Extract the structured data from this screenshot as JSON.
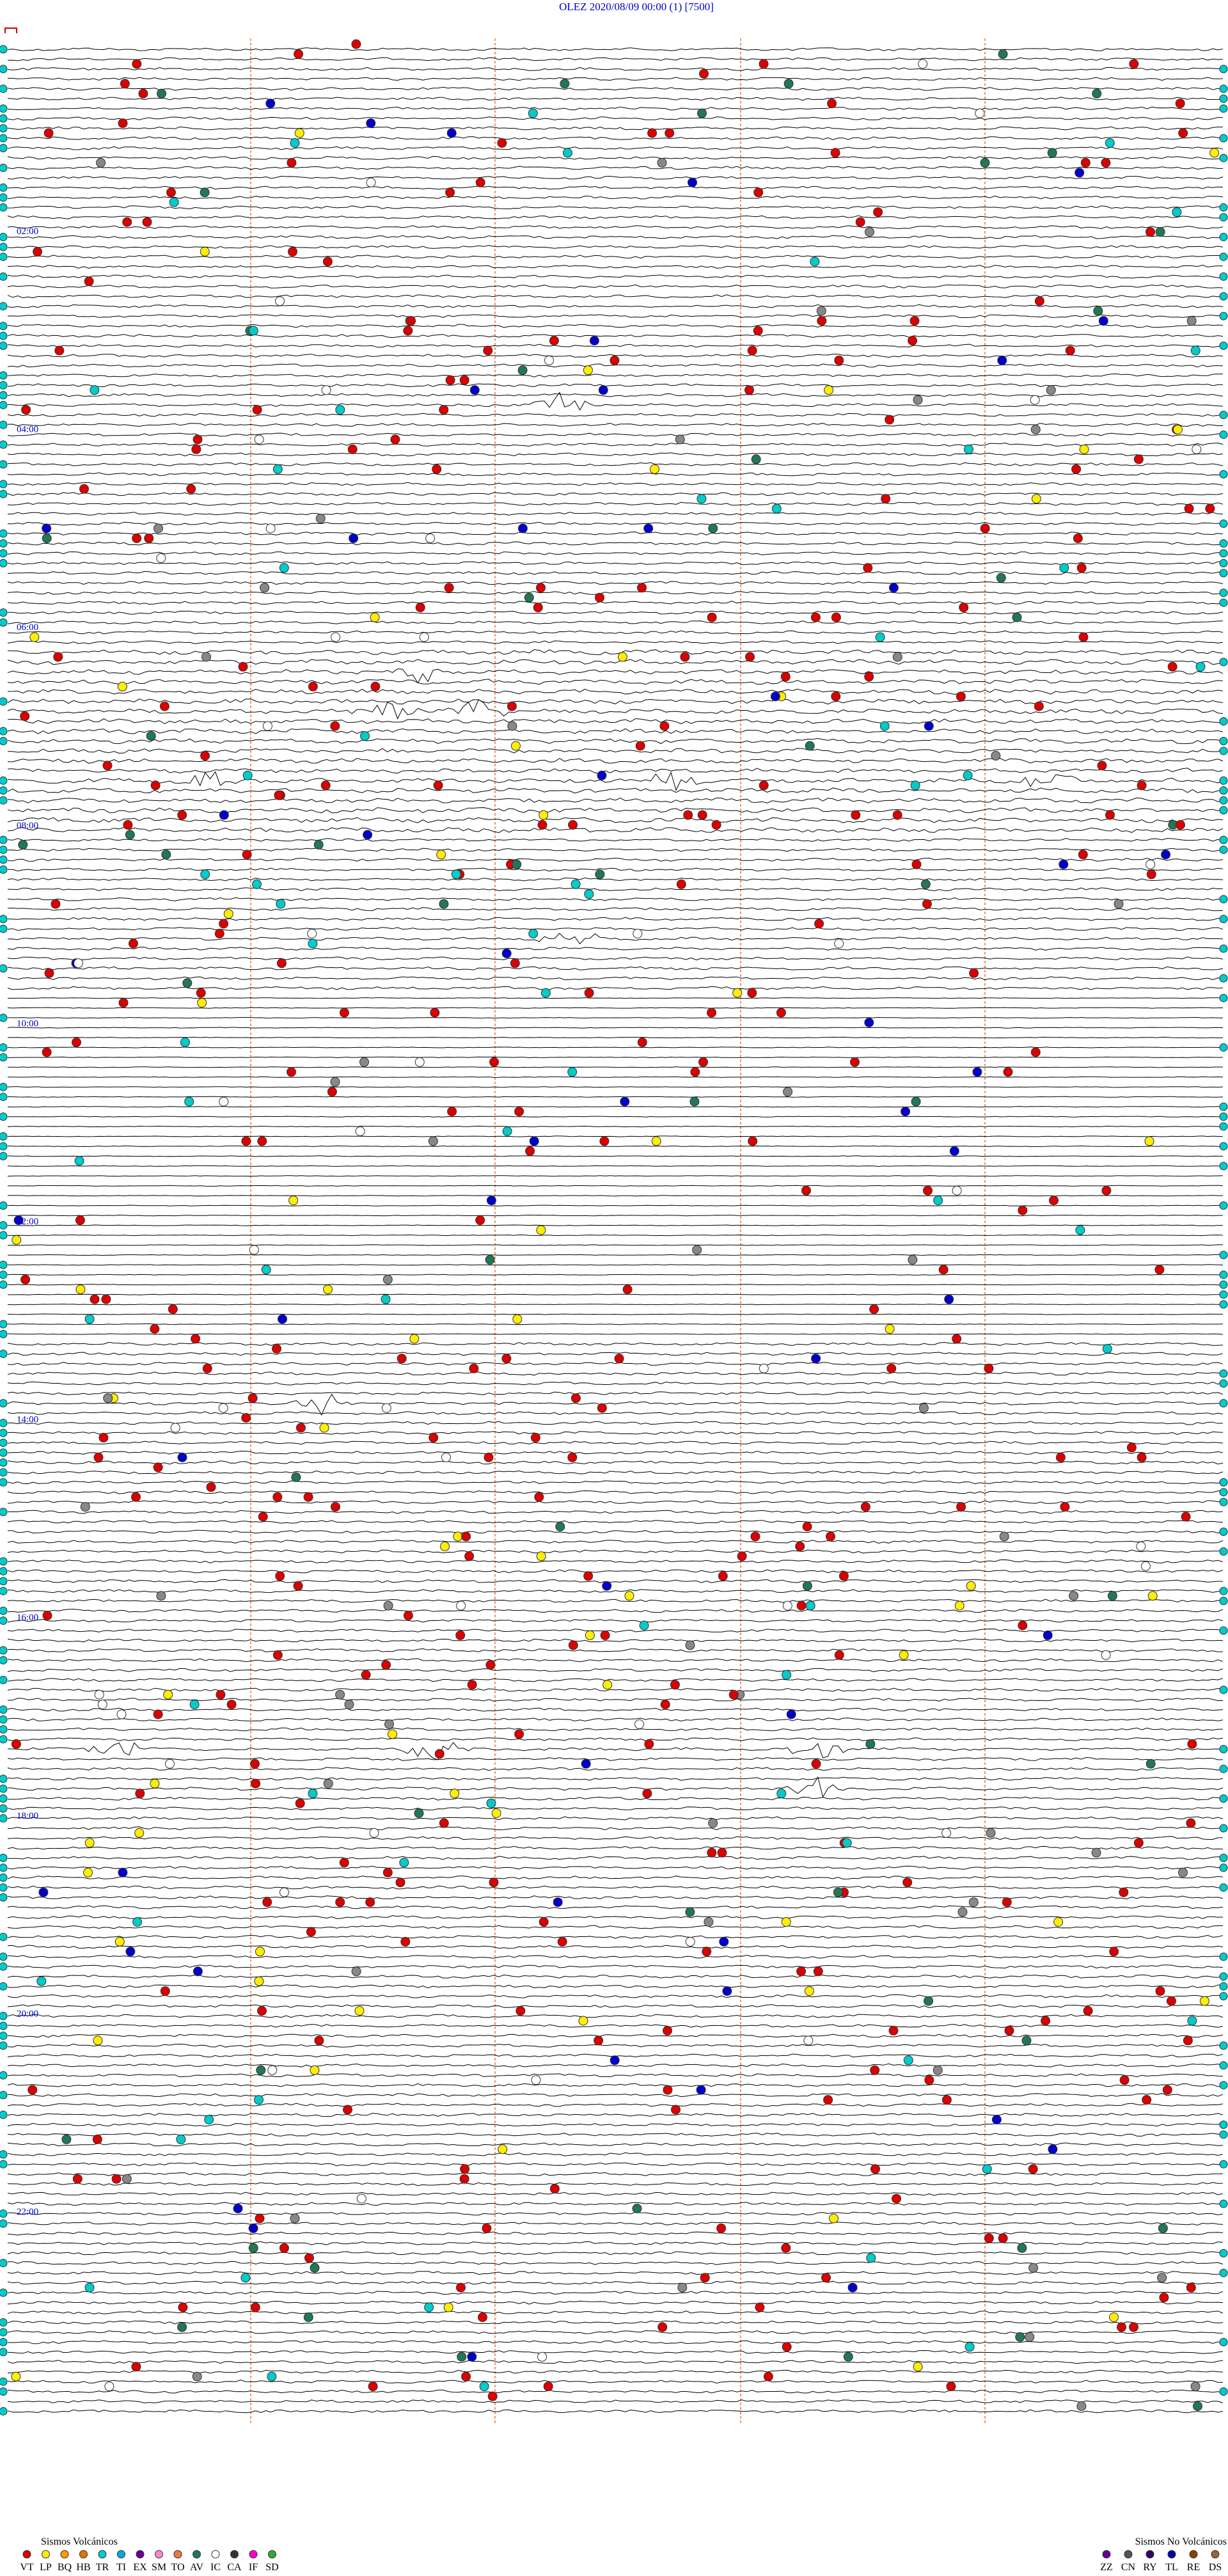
{
  "header": {
    "title": "OLEZ   2020/08/09 00:00   (1)   [7500]"
  },
  "time_labels": [
    "02:00",
    "04:00",
    "06:00",
    "08:00",
    "10:00",
    "12:00",
    "14:00",
    "16:00",
    "18:00",
    "20:00",
    "22:00"
  ],
  "legend_volcanic": {
    "title": "Sismos Volcánicos",
    "codes": [
      "VT",
      "LP",
      "BQ",
      "HB",
      "TR",
      "TI",
      "EX",
      "SM",
      "TO",
      "AV",
      "IC",
      "CA",
      "IF",
      "SD"
    ]
  },
  "legend_non_volcanic": {
    "title": "Sismos No Volcánicos",
    "codes": [
      "ZZ",
      "CN",
      "RY",
      "TL",
      "RE",
      "DS"
    ]
  }
}
